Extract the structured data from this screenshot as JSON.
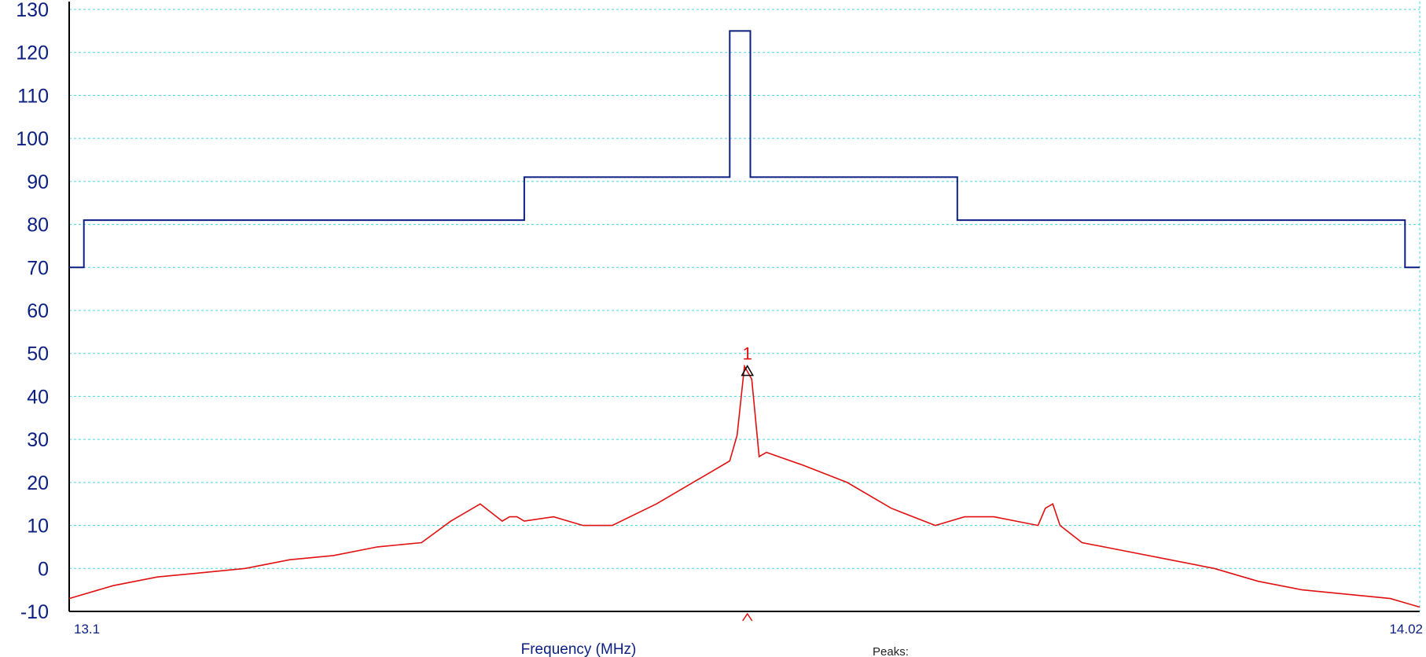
{
  "chart_data": {
    "type": "line",
    "title": "",
    "xlabel": "Frequency (MHz)",
    "ylabel": "",
    "xlim": [
      13.1,
      14.02
    ],
    "ylim": [
      -10,
      130
    ],
    "y_ticks": [
      "130",
      "120",
      "110",
      "100",
      "90",
      "80",
      "70",
      "60",
      "50",
      "40",
      "30",
      "20",
      "10",
      "0",
      "-10"
    ],
    "x_ticks": [
      "13.1",
      "14.02"
    ],
    "grid": true,
    "legend": "none",
    "peaks_label": "Peaks:",
    "colors": {
      "limit": "#0b1f80",
      "spectrum": "#e01010",
      "grid": "#40d8e0",
      "text": "#0b1f80"
    },
    "series": [
      {
        "role": "limit-mask",
        "color": "#0b1f80",
        "step": true,
        "x": [
          13.1,
          13.11,
          13.11,
          13.41,
          13.41,
          13.55,
          13.55,
          13.564,
          13.564,
          13.705,
          13.705,
          14.01,
          14.01,
          14.02
        ],
        "y": [
          70,
          70,
          81,
          81,
          91,
          91,
          125,
          125,
          91,
          91,
          81,
          81,
          70,
          70
        ]
      },
      {
        "role": "spectrum",
        "color": "#e01010",
        "x": [
          13.1,
          13.13,
          13.16,
          13.19,
          13.22,
          13.25,
          13.28,
          13.31,
          13.34,
          13.36,
          13.38,
          13.395,
          13.4,
          13.405,
          13.41,
          13.43,
          13.45,
          13.47,
          13.5,
          13.52,
          13.53,
          13.54,
          13.545,
          13.55,
          13.555,
          13.56,
          13.565,
          13.57,
          13.575,
          13.6,
          13.63,
          13.66,
          13.69,
          13.7,
          13.71,
          13.73,
          13.76,
          13.765,
          13.77,
          13.775,
          13.79,
          13.82,
          13.85,
          13.88,
          13.91,
          13.94,
          13.97,
          14.0,
          14.02
        ],
        "y": [
          -7,
          -4,
          -2,
          -1,
          0,
          2,
          3,
          5,
          6,
          11,
          15,
          11,
          12,
          12,
          11,
          12,
          10,
          10,
          15,
          19,
          21,
          23,
          24,
          25,
          31,
          47,
          44,
          26,
          27,
          24,
          20,
          14,
          10,
          11,
          12,
          12,
          10,
          14,
          15,
          10,
          6,
          4,
          2,
          0,
          -3,
          -5,
          -6,
          -7,
          -9
        ]
      }
    ],
    "annotations": [
      {
        "type": "peak-marker",
        "label": "1",
        "x": 13.562,
        "y": 46
      }
    ]
  }
}
